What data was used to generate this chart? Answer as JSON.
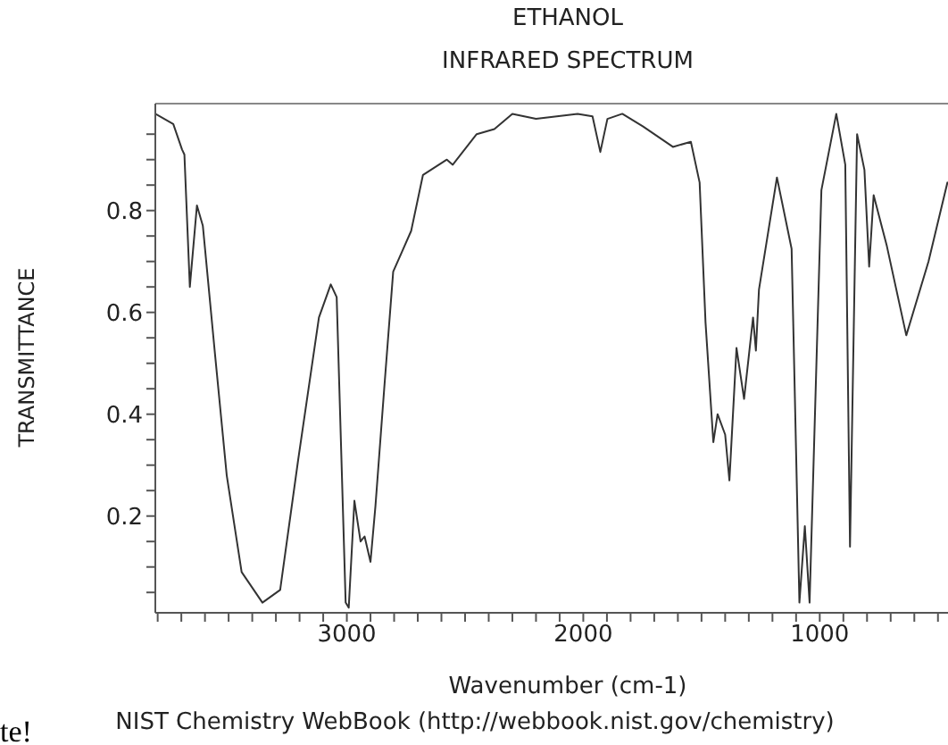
{
  "chart_data": {
    "type": "line",
    "title": "ETHANOL",
    "subtitle": "INFRARED SPECTRUM",
    "xlabel": "Wavenumber (cm-1)",
    "ylabel": "TRANSMITTANCE",
    "annotations": [
      "NIST Chemistry WebBook (http://webbook.nist.gov/chemistry)",
      "te!"
    ],
    "x": [
      3810,
      3734,
      3697,
      3687,
      3664,
      3634,
      3609,
      3558,
      3508,
      3445,
      3357,
      3282,
      3206,
      3118,
      3068,
      3043,
      3005,
      2992,
      2968,
      2942,
      2925,
      2900,
      2879,
      2842,
      2804,
      2766,
      2728,
      2678,
      2577,
      2552,
      2451,
      2376,
      2300,
      2200,
      2024,
      1961,
      1928,
      1898,
      1835,
      1747,
      1621,
      1545,
      1508,
      1483,
      1450,
      1432,
      1400,
      1382,
      1352,
      1320,
      1282,
      1270,
      1257,
      1181,
      1119,
      1086,
      1063,
      1043,
      993,
      930,
      892,
      872,
      842,
      811,
      791,
      772,
      716,
      634,
      540,
      460
    ],
    "series": [
      {
        "color": "#333333",
        "values": [
          0.99,
          0.97,
          0.92,
          0.91,
          0.65,
          0.81,
          0.77,
          0.52,
          0.28,
          0.09,
          0.03,
          0.055,
          0.31,
          0.59,
          0.655,
          0.63,
          0.03,
          0.02,
          0.23,
          0.15,
          0.16,
          0.11,
          0.22,
          0.45,
          0.68,
          0.72,
          0.76,
          0.87,
          0.9,
          0.89,
          0.95,
          0.96,
          0.99,
          0.98,
          0.99,
          0.985,
          0.915,
          0.98,
          0.99,
          0.965,
          0.925,
          0.935,
          0.855,
          0.58,
          0.345,
          0.4,
          0.36,
          0.27,
          0.53,
          0.43,
          0.59,
          0.525,
          0.645,
          0.865,
          0.725,
          0.03,
          0.18,
          0.03,
          0.84,
          0.99,
          0.89,
          0.14,
          0.95,
          0.88,
          0.69,
          0.83,
          0.73,
          0.555,
          0.7,
          0.855
        ]
      }
    ],
    "xlim": [
      3810,
      450
    ],
    "xticks": [
      {
        "value": 3800,
        "label": null
      },
      {
        "value": 3700,
        "label": null
      },
      {
        "value": 3600,
        "label": null
      },
      {
        "value": 3500,
        "label": null
      },
      {
        "value": 3400,
        "label": null
      },
      {
        "value": 3300,
        "label": null
      },
      {
        "value": 3200,
        "label": null
      },
      {
        "value": 3100,
        "label": null
      },
      3000,
      {
        "value": 2900,
        "label": null
      },
      {
        "value": 2800,
        "label": null
      },
      {
        "value": 2700,
        "label": null
      },
      {
        "value": 2600,
        "label": null
      },
      {
        "value": 2500,
        "label": null
      },
      {
        "value": 2400,
        "label": null
      },
      {
        "value": 2300,
        "label": null
      },
      {
        "value": 2200,
        "label": null
      },
      {
        "value": 2100,
        "label": null
      },
      2000,
      {
        "value": 1900,
        "label": null
      },
      {
        "value": 1800,
        "label": null
      },
      {
        "value": 1700,
        "label": null
      },
      {
        "value": 1600,
        "label": null
      },
      {
        "value": 1500,
        "label": null
      },
      {
        "value": 1400,
        "label": null
      },
      {
        "value": 1300,
        "label": null
      },
      {
        "value": 1200,
        "label": null
      },
      {
        "value": 1100,
        "label": null
      },
      1000,
      {
        "value": 900,
        "label": null
      },
      {
        "value": 800,
        "label": null
      },
      {
        "value": 700,
        "label": null
      },
      {
        "value": 600,
        "label": null
      },
      {
        "value": 500,
        "label": null
      }
    ],
    "ylim": [
      0.01,
      1.01
    ],
    "yticks": [
      {
        "value": 0.05,
        "label": null
      },
      {
        "value": 0.1,
        "label": null
      },
      {
        "value": 0.15,
        "label": null
      },
      0.2,
      {
        "value": 0.25,
        "label": null
      },
      {
        "value": 0.3,
        "label": null
      },
      {
        "value": 0.35,
        "label": null
      },
      0.4,
      {
        "value": 0.45,
        "label": null
      },
      {
        "value": 0.5,
        "label": null
      },
      {
        "value": 0.55,
        "label": null
      },
      0.6,
      {
        "value": 0.65,
        "label": null
      },
      {
        "value": 0.7,
        "label": null
      },
      {
        "value": 0.75,
        "label": null
      },
      0.8,
      {
        "value": 0.85,
        "label": null
      },
      {
        "value": 0.9,
        "label": null
      },
      {
        "value": 0.95,
        "label": null
      }
    ],
    "grid": false,
    "legend": false,
    "marker": "none",
    "line_style": "solid"
  }
}
